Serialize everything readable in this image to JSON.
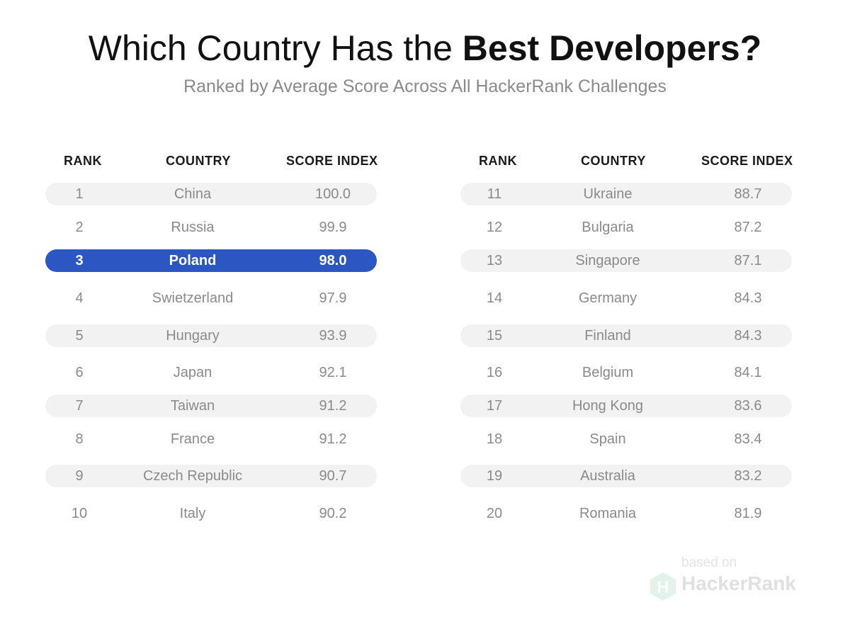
{
  "title_light": "Which Country Has the",
  "title_bold": "Best Developers?",
  "subtitle": "Ranked by Average Score Across All HackerRank Challenges",
  "headers": {
    "rank": "RANK",
    "country": "COUNTRY",
    "score": "SCORE INDEX"
  },
  "brand": {
    "based_on": "based on",
    "name": "HackerRank",
    "icon": "hackerrank-hex-logo-icon"
  },
  "colors": {
    "highlight": "#2c57c3",
    "shaded_row": "#f2f2f2",
    "text_muted": "#8a8a8a"
  },
  "chart_data": {
    "type": "table",
    "title": "Which Country Has the Best Developers?",
    "subtitle": "Ranked by Average Score Across All HackerRank Challenges",
    "columns": [
      "RANK",
      "COUNTRY",
      "SCORE INDEX"
    ],
    "highlighted_rank": 3,
    "rows": [
      {
        "rank": "1",
        "country": "China",
        "score": "100.0"
      },
      {
        "rank": "2",
        "country": "Russia",
        "score": "99.9"
      },
      {
        "rank": "3",
        "country": "Poland",
        "score": "98.0"
      },
      {
        "rank": "4",
        "country": "Swietzerland",
        "score": "97.9"
      },
      {
        "rank": "5",
        "country": "Hungary",
        "score": "93.9"
      },
      {
        "rank": "6",
        "country": "Japan",
        "score": "92.1"
      },
      {
        "rank": "7",
        "country": "Taiwan",
        "score": "91.2"
      },
      {
        "rank": "8",
        "country": "France",
        "score": "91.2"
      },
      {
        "rank": "9",
        "country": "Czech Republic",
        "score": "90.7"
      },
      {
        "rank": "10",
        "country": "Italy",
        "score": "90.2"
      },
      {
        "rank": "11",
        "country": "Ukraine",
        "score": "88.7"
      },
      {
        "rank": "12",
        "country": "Bulgaria",
        "score": "87.2"
      },
      {
        "rank": "13",
        "country": "Singapore",
        "score": "87.1"
      },
      {
        "rank": "14",
        "country": "Germany",
        "score": "84.3"
      },
      {
        "rank": "15",
        "country": "Finland",
        "score": "84.3"
      },
      {
        "rank": "16",
        "country": "Belgium",
        "score": "84.1"
      },
      {
        "rank": "17",
        "country": "Hong Kong",
        "score": "83.6"
      },
      {
        "rank": "18",
        "country": "Spain",
        "score": "83.4"
      },
      {
        "rank": "19",
        "country": "Australia",
        "score": "83.2"
      },
      {
        "rank": "20",
        "country": "Romania",
        "score": "81.9"
      }
    ]
  }
}
